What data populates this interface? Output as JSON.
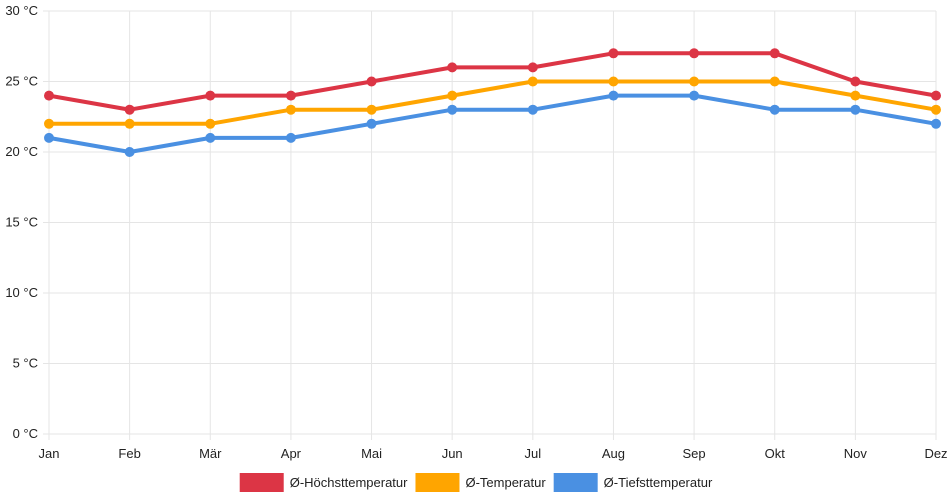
{
  "chart_data": {
    "type": "line",
    "title": "",
    "xlabel": "",
    "ylabel": "",
    "categories": [
      "Jan",
      "Feb",
      "Mär",
      "Apr",
      "Mai",
      "Jun",
      "Jul",
      "Aug",
      "Sep",
      "Okt",
      "Nov",
      "Dez"
    ],
    "ylim": [
      0,
      30
    ],
    "y_ticks": [
      0,
      5,
      10,
      15,
      20,
      25,
      30
    ],
    "y_tick_labels": [
      "0 °C",
      "5 °C",
      "10 °C",
      "15 °C",
      "20 °C",
      "25 °C",
      "30 °C"
    ],
    "grid": true,
    "legend_position": "bottom",
    "series": [
      {
        "name": "Ø-Höchsttemperatur",
        "color": "#dc3545",
        "values": [
          24,
          23,
          24,
          24,
          25,
          26,
          26,
          27,
          27,
          27,
          25,
          24
        ]
      },
      {
        "name": "Ø-Temperatur",
        "color": "#ffa500",
        "values": [
          22,
          22,
          22,
          23,
          23,
          24,
          25,
          25,
          25,
          25,
          24,
          23
        ]
      },
      {
        "name": "Ø-Tiefsttemperatur",
        "color": "#4a90e2",
        "values": [
          21,
          20,
          21,
          21,
          22,
          23,
          23,
          24,
          24,
          23,
          23,
          22
        ]
      }
    ]
  }
}
